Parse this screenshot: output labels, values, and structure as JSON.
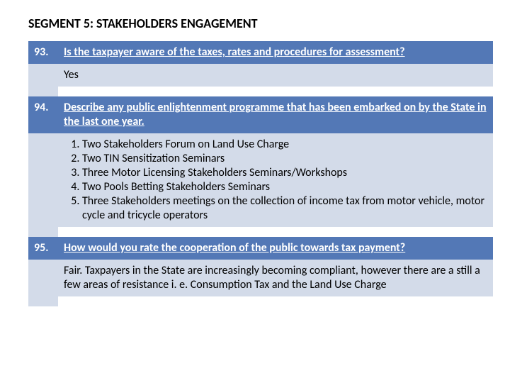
{
  "title": "SEGMENT 5: STAKEHOLDERS ENGAGEMENT",
  "q93": {
    "num": "93.",
    "question": "Is the taxpayer aware of the taxes, rates and procedures for assessment?",
    "answer": "Yes"
  },
  "q94": {
    "num": "94.",
    "question": "Describe any public enlightenment programme that has been embarked on by the State in the last one year.",
    "items": {
      "i1": "Two Stakeholders Forum on Land Use Charge",
      "i2": "Two TIN Sensitization Seminars",
      "i3": "Three Motor Licensing Stakeholders Seminars/Workshops",
      "i4": "Two Pools Betting Stakeholders Seminars",
      "i5": "Three Stakeholders meetings on the collection of income tax from motor vehicle, motor cycle and tricycle operators"
    }
  },
  "q95": {
    "num": "95.",
    "question": "How would you rate the cooperation of the public towards tax payment?",
    "answer": "Fair. Taxpayers in the State are increasingly becoming compliant, however there are a still a few areas of resistance i. e. Consumption Tax and the Land Use Charge"
  }
}
